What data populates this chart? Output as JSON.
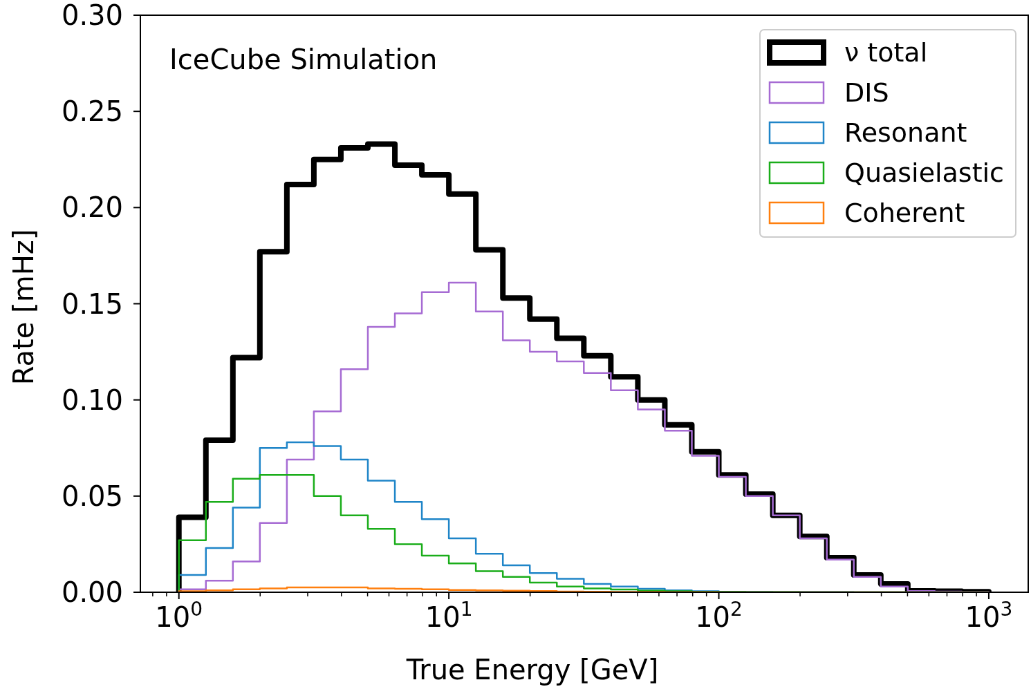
{
  "chart_data": {
    "type": "histogram",
    "xlabel": "True Energy [GeV]",
    "ylabel": "Rate [mHz]",
    "annotations": [
      "IceCube Simulation"
    ],
    "log": "x",
    "grid": false,
    "legend": "top right",
    "bins": [
      1,
      1.259,
      1.585,
      1.995,
      2.512,
      3.162,
      3.981,
      5.012,
      6.31,
      7.943,
      10,
      12.59,
      15.85,
      19.95,
      25.12,
      31.62,
      39.81,
      50.12,
      63.1,
      79.43,
      100,
      125.9,
      158.5,
      199.5,
      251.2,
      316.2,
      398.1,
      501.2,
      631,
      794.3,
      1000
    ],
    "series": [
      {
        "name": "ν total",
        "color": "#000000",
        "values": [
          0.039,
          0.079,
          0.122,
          0.177,
          0.212,
          0.225,
          0.231,
          0.233,
          0.222,
          0.217,
          0.207,
          0.178,
          0.153,
          0.142,
          0.132,
          0.123,
          0.112,
          0.1,
          0.087,
          0.073,
          0.061,
          0.051,
          0.04,
          0.029,
          0.018,
          0.009,
          0.0043,
          0.0007,
          0.0005,
          0.0003
        ]
      },
      {
        "name": "DIS",
        "color": "#a66bd3",
        "values": [
          0.0015,
          0.006,
          0.016,
          0.036,
          0.069,
          0.094,
          0.116,
          0.138,
          0.145,
          0.156,
          0.161,
          0.146,
          0.131,
          0.125,
          0.12,
          0.114,
          0.105,
          0.095,
          0.084,
          0.071,
          0.06,
          0.05,
          0.04,
          0.028,
          0.017,
          0.008,
          0.003,
          0.0006,
          0.0004,
          0.0002
        ]
      },
      {
        "name": "Resonant",
        "color": "#1f85c8",
        "values": [
          0.009,
          0.023,
          0.044,
          0.075,
          0.078,
          0.076,
          0.069,
          0.058,
          0.047,
          0.038,
          0.028,
          0.02,
          0.014,
          0.01,
          0.007,
          0.0043,
          0.003,
          0.0018,
          0.001,
          0.0005,
          0.0003,
          0.0002,
          0.0001,
          0.0001,
          0.0001,
          0,
          0,
          0,
          0,
          0
        ]
      },
      {
        "name": "Quasielastic",
        "color": "#1aad1a",
        "values": [
          0.027,
          0.047,
          0.059,
          0.061,
          0.061,
          0.05,
          0.04,
          0.033,
          0.025,
          0.019,
          0.015,
          0.011,
          0.008,
          0.005,
          0.003,
          0.002,
          0.0014,
          0.0008,
          0.0005,
          0.0003,
          0.0002,
          0.0001,
          0.0001,
          0,
          0,
          0,
          0,
          0,
          0,
          0
        ]
      },
      {
        "name": "Coherent",
        "color": "#ff7f0e",
        "values": [
          0.0005,
          0.001,
          0.0015,
          0.002,
          0.0025,
          0.0025,
          0.0025,
          0.002,
          0.0018,
          0.0015,
          0.0012,
          0.001,
          0.0008,
          0.0006,
          0.0004,
          0.0003,
          0.0002,
          0.0002,
          0.0001,
          0.0001,
          0,
          0,
          0,
          0,
          0,
          0,
          0,
          0,
          0,
          0
        ]
      }
    ],
    "xlim": [
      0.72,
      1400
    ],
    "xticks": [
      {
        "value": 0.8,
        "label": null
      },
      {
        "value": 0.9,
        "label": null
      },
      {
        "value": 1,
        "label": "10$^{0}$"
      },
      {
        "value": 2,
        "label": null
      },
      {
        "value": 3,
        "label": null
      },
      {
        "value": 4,
        "label": null
      },
      {
        "value": 5,
        "label": null
      },
      {
        "value": 6,
        "label": null
      },
      {
        "value": 7,
        "label": null
      },
      {
        "value": 8,
        "label": null
      },
      {
        "value": 9,
        "label": null
      },
      {
        "value": 10,
        "label": "10$^{1}$"
      },
      {
        "value": 20,
        "label": null
      },
      {
        "value": 30,
        "label": null
      },
      {
        "value": 40,
        "label": null
      },
      {
        "value": 50,
        "label": null
      },
      {
        "value": 60,
        "label": null
      },
      {
        "value": 70,
        "label": null
      },
      {
        "value": 80,
        "label": null
      },
      {
        "value": 90,
        "label": null
      },
      {
        "value": 100,
        "label": "10$^{2}$"
      },
      {
        "value": 200,
        "label": null
      },
      {
        "value": 300,
        "label": null
      },
      {
        "value": 400,
        "label": null
      },
      {
        "value": 500,
        "label": null
      },
      {
        "value": 600,
        "label": null
      },
      {
        "value": 700,
        "label": null
      },
      {
        "value": 800,
        "label": null
      },
      {
        "value": 900,
        "label": null
      },
      {
        "value": 1000,
        "label": "10$^{3}$"
      }
    ],
    "ylim": [
      0,
      0.3
    ],
    "yticks": [
      {
        "value": 0,
        "label": "0.00"
      },
      {
        "value": 0.05,
        "label": "0.05"
      },
      {
        "value": 0.1,
        "label": "0.10"
      },
      {
        "value": 0.15,
        "label": "0.15"
      },
      {
        "value": 0.2,
        "label": "0.20"
      },
      {
        "value": 0.25,
        "label": "0.25"
      },
      {
        "value": 0.3,
        "label": "0.30"
      }
    ]
  }
}
